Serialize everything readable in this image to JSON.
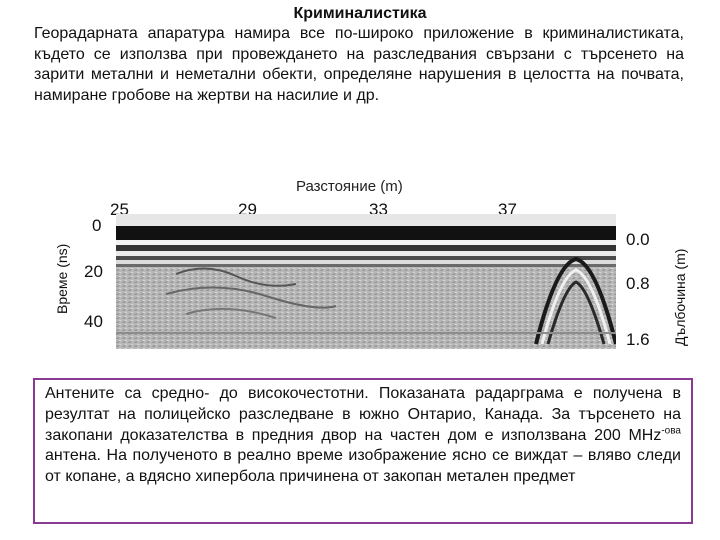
{
  "title": "Криминалистика",
  "intro": "Георадарната апаратура намира все по-широко приложение в криминалистиката, където се използва при провеждането на разследвания свързани с търсенето на зарити метални и неметални обекти, определяне нарушения в целостта на почвата, намиране гробове на жертви на насилие и др.",
  "figure": {
    "top_label": "Разстояние (m)",
    "left_label": "Време (ns)",
    "right_label": "Дълбочина (m)",
    "distance_ticks": [
      "25",
      "29",
      "33",
      "37"
    ],
    "time_ticks": [
      "0",
      "20",
      "40"
    ],
    "depth_ticks": [
      "0.0",
      "0.8",
      "1.6"
    ]
  },
  "caption": {
    "part1": "Антените са средно- до високочестотни. Показаната радарграма е получена в резултат на полицейско разследване в южно Онтарио, Канада. За търсенето на закопани доказателства в предния двор на частен дом е използвана 200 MHz",
    "sup": "-ова",
    "part2": " антена. На полученото в реално време изображение ясно се виждат – вляво следи от копане, а вдясно хипербола причинена от закопан метален предмет"
  }
}
